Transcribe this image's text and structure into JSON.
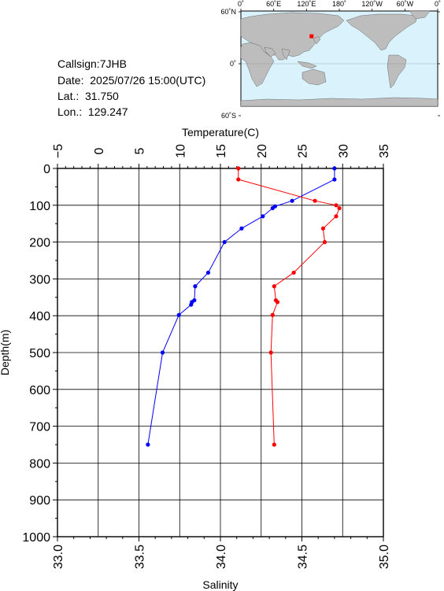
{
  "station": {
    "callsign": "Callsign:7JHB",
    "date": "Date:  2025/07/26 15:00(UTC)",
    "lat": "Lat.:  31.750",
    "lon": "Lon.:  129.247"
  },
  "map": {
    "lon_labels": [
      "0˚",
      "60˚E",
      "120˚E",
      "180˚",
      "120˚W",
      "60˚W",
      "0˚"
    ],
    "lat_labels": [
      "60˚N",
      "0˚",
      "60˚S"
    ],
    "marker_lat": 31.75,
    "marker_lon": 129.247,
    "colors": {
      "ocean": "#d9f2fb",
      "land": "#bdbdbd",
      "marker": "#ff0000"
    }
  },
  "chart_data": {
    "type": "line",
    "ylabel": "Depth(m)",
    "ylim": [
      0,
      1000
    ],
    "y_inverted": true,
    "y_ticks": [
      0,
      100,
      200,
      300,
      400,
      500,
      600,
      700,
      800,
      900,
      1000
    ],
    "top_axis": {
      "label": "Temperature(C)",
      "xlim": [
        -5,
        35
      ],
      "ticks": [
        -5,
        0,
        5,
        10,
        15,
        20,
        25,
        30,
        35
      ]
    },
    "bottom_axis": {
      "label": "Salinity",
      "xlim": [
        33.0,
        35.0
      ],
      "ticks": [
        33.0,
        33.5,
        34.0,
        34.5,
        35.0
      ]
    },
    "grid": true,
    "series": [
      {
        "key": "temperature",
        "axis": "top",
        "color": "#0000ff",
        "points": [
          [
            29.0,
            0
          ],
          [
            29.0,
            30
          ],
          [
            23.8,
            88
          ],
          [
            21.7,
            103
          ],
          [
            21.4,
            108
          ],
          [
            20.2,
            130
          ],
          [
            17.6,
            163
          ],
          [
            15.5,
            200
          ],
          [
            13.5,
            283
          ],
          [
            11.9,
            320
          ],
          [
            11.8,
            358
          ],
          [
            11.5,
            363
          ],
          [
            11.4,
            370
          ],
          [
            9.9,
            398
          ],
          [
            7.9,
            500
          ],
          [
            6.1,
            750
          ]
        ]
      },
      {
        "key": "salinity",
        "axis": "bottom",
        "color": "#ff0000",
        "points": [
          [
            34.11,
            0
          ],
          [
            34.11,
            30
          ],
          [
            34.58,
            88
          ],
          [
            34.71,
            100
          ],
          [
            34.73,
            108
          ],
          [
            34.71,
            130
          ],
          [
            34.63,
            163
          ],
          [
            34.64,
            200
          ],
          [
            34.45,
            283
          ],
          [
            34.33,
            320
          ],
          [
            34.34,
            358
          ],
          [
            34.35,
            363
          ],
          [
            34.32,
            398
          ],
          [
            34.31,
            500
          ],
          [
            34.33,
            750
          ]
        ]
      }
    ]
  }
}
